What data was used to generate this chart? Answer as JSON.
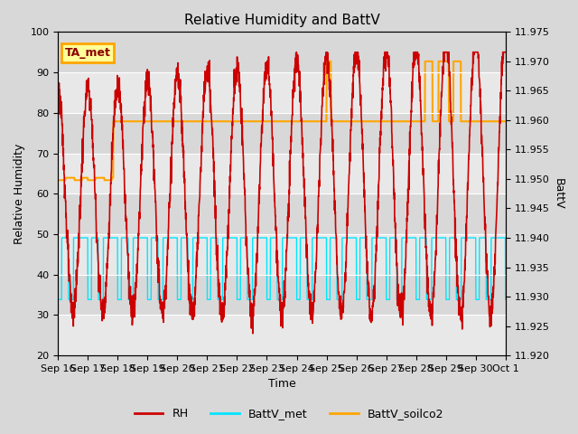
{
  "title": "Relative Humidity and BattV",
  "xlabel": "Time",
  "ylabel_left": "Relative Humidity",
  "ylabel_right": "BattV",
  "ylim_left": [
    20,
    100
  ],
  "ylim_right": [
    11.92,
    11.975
  ],
  "yticks_left": [
    20,
    30,
    40,
    50,
    60,
    70,
    80,
    90,
    100
  ],
  "yticks_right": [
    11.92,
    11.925,
    11.93,
    11.935,
    11.94,
    11.945,
    11.95,
    11.955,
    11.96,
    11.965,
    11.97,
    11.975
  ],
  "bg_color": "#d8d8d8",
  "plot_bg_color": "#e8e8e8",
  "annotation_box": {
    "text": "TA_met",
    "fc": "#ffff99",
    "ec": "#ffa500"
  },
  "rh_color": "#cc0000",
  "battv_met_color": "#00e5ff",
  "battv_soilco2_color": "#ffa500",
  "legend_items": [
    "RH",
    "BattV_met",
    "BattV_soilco2"
  ],
  "rh_lw": 1.2,
  "battv_lw": 1.0,
  "x_tick_labels": [
    "Sep 16",
    "Sep 17",
    "Sep 18",
    "Sep 19",
    "Sep 20",
    "Sep 21",
    "Sep 22",
    "Sep 23",
    "Sep 24",
    "Sep 25",
    "Sep 26",
    "Sep 27",
    "Sep 28",
    "Sep 29",
    "Sep 30",
    "Oct 1"
  ],
  "rmin": 11.92,
  "rmax": 11.975,
  "lmin": 20,
  "lmax": 100,
  "n_days": 15,
  "pts_per_day": 144
}
